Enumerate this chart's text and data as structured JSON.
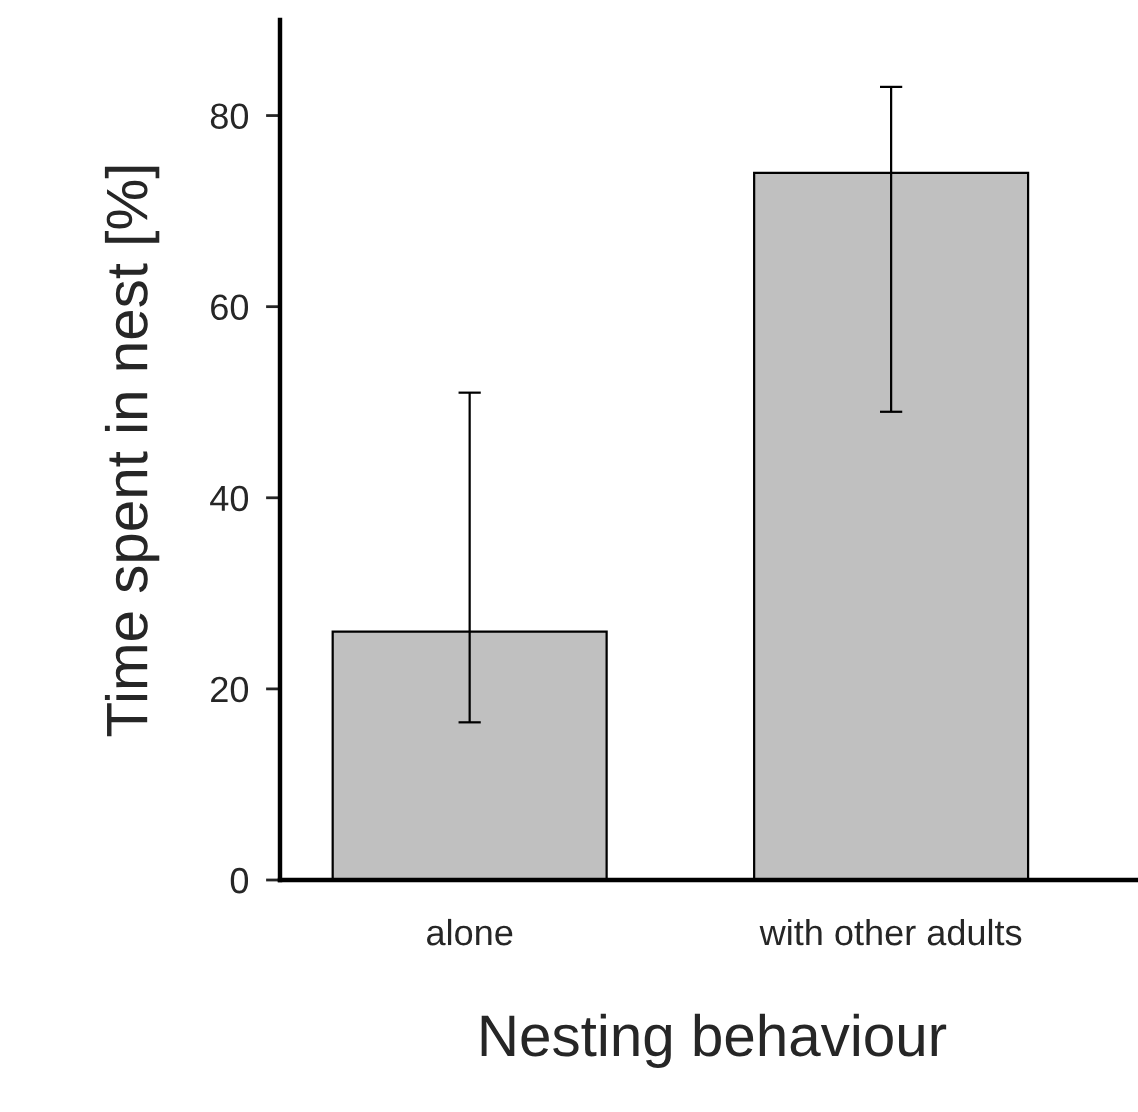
{
  "chart_data": {
    "type": "bar",
    "xlabel": "Nesting behaviour",
    "ylabel": "Time spent in nest [%]",
    "categories": [
      "alone",
      "with other adults"
    ],
    "values": [
      26,
      74
    ],
    "errors": [
      [
        16.5,
        51
      ],
      [
        49,
        83
      ]
    ],
    "color": "#c0c0c0",
    "ylim": [
      0,
      90
    ],
    "yticks": [
      0,
      20,
      40,
      60,
      80
    ],
    "grid": false,
    "legend": false
  }
}
